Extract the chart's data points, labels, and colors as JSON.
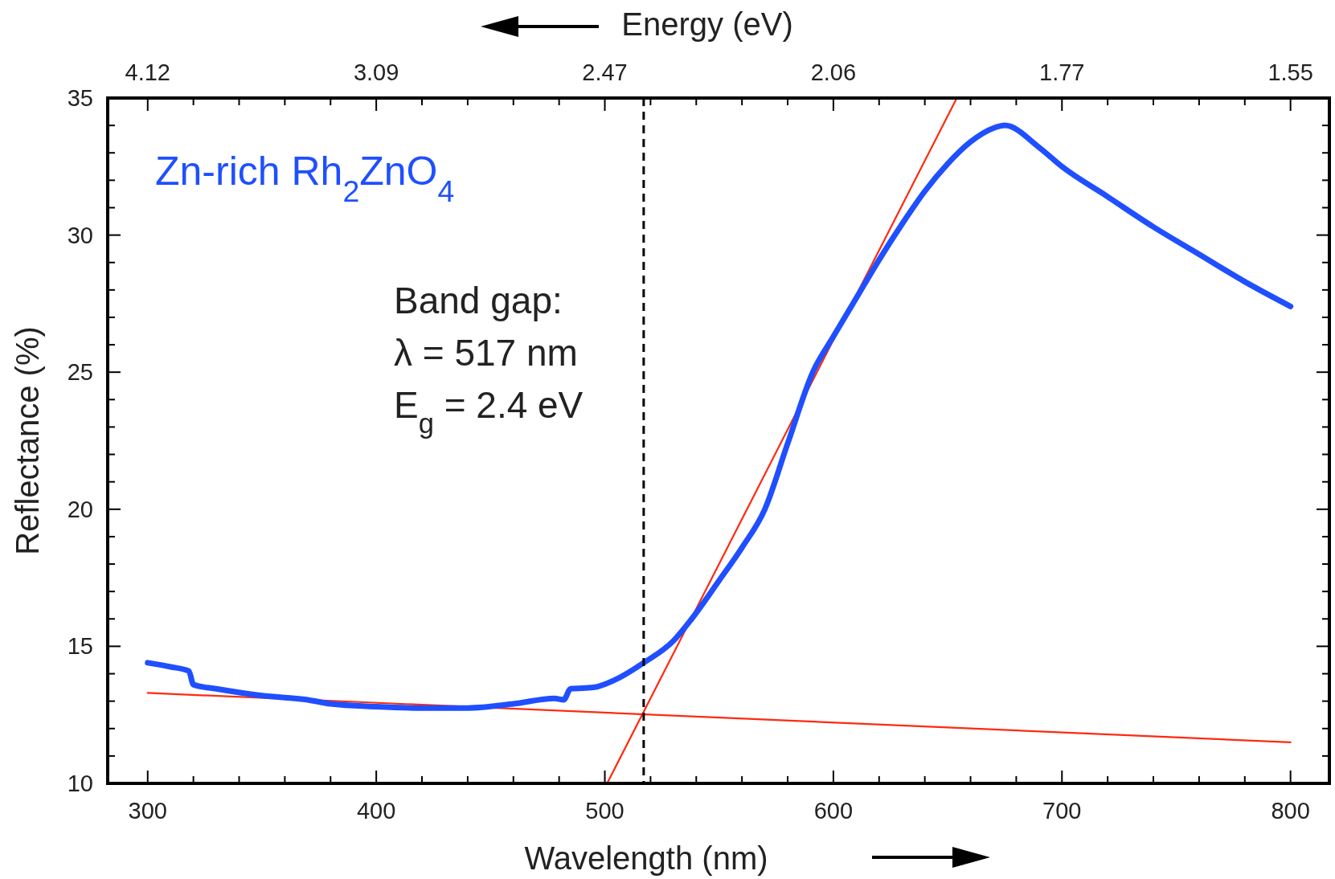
{
  "chart_data": {
    "type": "line",
    "xlabel": "Wavelength (nm)",
    "ylabel": "Reflectance (%)",
    "xlim": [
      282.5,
      817
    ],
    "ylim": [
      10,
      35
    ],
    "xticks": [
      300,
      {
        "value": 320,
        "label": null
      },
      {
        "value": 340,
        "label": null
      },
      {
        "value": 360,
        "label": null
      },
      {
        "value": 380,
        "label": null
      },
      400,
      {
        "value": 420,
        "label": null
      },
      {
        "value": 440,
        "label": null
      },
      {
        "value": 460,
        "label": null
      },
      {
        "value": 480,
        "label": null
      },
      500,
      {
        "value": 520,
        "label": null
      },
      {
        "value": 540,
        "label": null
      },
      {
        "value": 560,
        "label": null
      },
      {
        "value": 580,
        "label": null
      },
      600,
      {
        "value": 620,
        "label": null
      },
      {
        "value": 640,
        "label": null
      },
      {
        "value": 660,
        "label": null
      },
      {
        "value": 680,
        "label": null
      },
      700,
      {
        "value": 720,
        "label": null
      },
      {
        "value": 740,
        "label": null
      },
      {
        "value": 760,
        "label": null
      },
      {
        "value": 780,
        "label": null
      },
      800
    ],
    "yticks": [
      10,
      {
        "value": 11,
        "label": null
      },
      {
        "value": 12,
        "label": null
      },
      {
        "value": 13,
        "label": null
      },
      {
        "value": 14,
        "label": null
      },
      15,
      {
        "value": 16,
        "label": null
      },
      {
        "value": 17,
        "label": null
      },
      {
        "value": 18,
        "label": null
      },
      {
        "value": 19,
        "label": null
      },
      20,
      {
        "value": 21,
        "label": null
      },
      {
        "value": 22,
        "label": null
      },
      {
        "value": 23,
        "label": null
      },
      {
        "value": 24,
        "label": null
      },
      25,
      {
        "value": 26,
        "label": null
      },
      {
        "value": 27,
        "label": null
      },
      {
        "value": 28,
        "label": null
      },
      {
        "value": 29,
        "label": null
      },
      30,
      {
        "value": 31,
        "label": null
      },
      {
        "value": 32,
        "label": null
      },
      {
        "value": 33,
        "label": null
      },
      {
        "value": 34,
        "label": null
      },
      35
    ],
    "grid": false,
    "marker": "none",
    "line_style": "solid",
    "series": [
      {
        "name": "Zn-rich Rh$_{2}$ZnO$_{4}$",
        "color": "#1f4fff",
        "x": [
          300,
          310,
          318,
          320,
          330,
          350,
          370,
          380,
          400,
          420,
          440,
          460,
          478,
          482,
          485,
          495,
          505,
          517,
          530,
          538,
          550,
          560,
          570,
          580,
          591,
          600,
          610,
          620,
          630,
          640,
          650,
          660,
          670,
          675,
          690,
          700,
          720,
          740,
          760,
          780,
          800
        ],
        "values": [
          14.4,
          14.25,
          14.1,
          13.6,
          13.45,
          13.2,
          13.05,
          12.9,
          12.8,
          12.75,
          12.75,
          12.9,
          13.1,
          13.05,
          13.45,
          13.5,
          13.8,
          14.4,
          15.2,
          16,
          17.4,
          18.6,
          20,
          22.4,
          25,
          26.3,
          27.7,
          29.1,
          30.4,
          31.6,
          32.6,
          33.4,
          33.9,
          34,
          33.2,
          32.5,
          31.4,
          30.3,
          29.3,
          28.3,
          27.4
        ]
      },
      {
        "type": "line",
        "color": "#ff2a10",
        "x": [
          300,
          800
        ],
        "values": [
          13.3,
          11.5
        ]
      },
      {
        "type": "line",
        "color": "#ff2a10",
        "x": [
          501,
          654
        ],
        "values": [
          10,
          35
        ]
      }
    ],
    "ref_lines": [
      {
        "axis": "x",
        "value": 517,
        "color": "#000000",
        "line_style": "dashed"
      }
    ],
    "annotations": [
      "Band gap:",
      "λ = 517 nm",
      "E$_{g}$ = 2.4 eV",
      "Energy (eV)",
      "4.12",
      "3.09",
      "2.47",
      "2.06",
      "1.77",
      "1.55"
    ]
  }
}
